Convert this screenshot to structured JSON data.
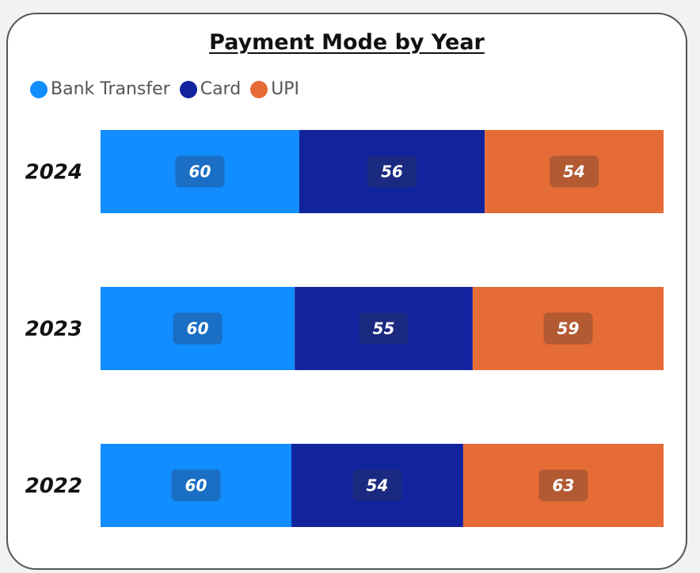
{
  "chart_data": {
    "type": "bar",
    "orientation": "horizontal",
    "stacked": "100%",
    "title": "Payment Mode by Year",
    "categories": [
      "2024",
      "2023",
      "2022"
    ],
    "series": [
      {
        "name": "Bank Transfer",
        "color": "#118DFF",
        "label_bg": "#1A6EC4",
        "values": [
          60,
          60,
          60
        ]
      },
      {
        "name": "Card",
        "color": "#12239E",
        "label_bg": "#1A2A80",
        "values": [
          56,
          55,
          54
        ]
      },
      {
        "name": "UPI",
        "color": "#E66C37",
        "label_bg": "#B35A33",
        "values": [
          54,
          59,
          63
        ]
      }
    ],
    "legend_position": "top-left",
    "grid": false
  }
}
